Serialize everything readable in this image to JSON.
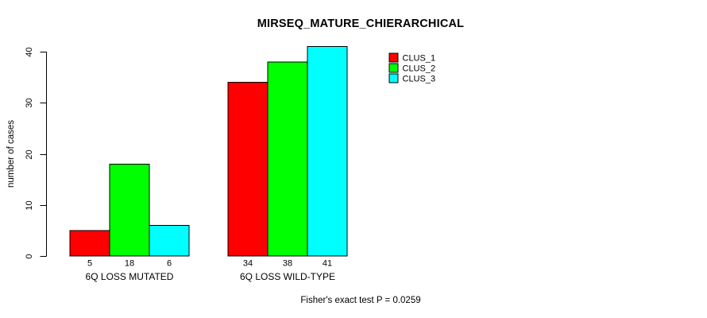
{
  "chart_data": {
    "type": "bar",
    "title": "MIRSEQ_MATURE_CHIERARCHICAL",
    "ylabel": "number of cases",
    "xlabel": "",
    "annotation": "Fisher's exact test P = 0.0259",
    "categories": [
      "6Q LOSS MUTATED",
      "6Q LOSS WILD-TYPE"
    ],
    "series": [
      {
        "name": "CLUS_1",
        "color": "#ff0000",
        "values": [
          5,
          34
        ]
      },
      {
        "name": "CLUS_2",
        "color": "#00ff00",
        "values": [
          18,
          38
        ]
      },
      {
        "name": "CLUS_3",
        "color": "#00ffff",
        "values": [
          6,
          41
        ]
      }
    ],
    "bar_value_labels_shown": true,
    "yticks": [
      0,
      10,
      20,
      30,
      40
    ],
    "ylim": [
      0,
      41
    ],
    "grid": false,
    "legend_position": "inside-top-right",
    "background": "#ffffff",
    "bar_border_color": "#000000",
    "axis_color": "#000000"
  }
}
